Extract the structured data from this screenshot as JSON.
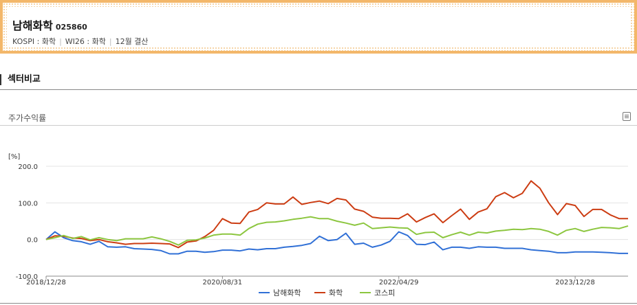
{
  "header": {
    "company": "남해화학",
    "code": "025860",
    "market": "KOSPI : 화학",
    "index": "WI26 : 화학",
    "fiscal": "12월 결산"
  },
  "section": {
    "title": "섹터비교"
  },
  "chart_title": "주가수익률",
  "colors": {
    "남해화학": "#2f6fd6",
    "화학": "#cc3c12",
    "코스피": "#8cc63f",
    "accent_border": "#f3b76a"
  },
  "chart_data": {
    "type": "line",
    "unit_label": "[%]",
    "ylim": [
      -100,
      200
    ],
    "y_ticks": [
      "200.0",
      "100.0",
      "0.0",
      "-100.0"
    ],
    "y_tick_values": [
      200,
      100,
      0,
      -100
    ],
    "x_tick_labels": [
      "2018/12/28",
      "2020/08/31",
      "2022/04/29",
      "2023/12/28"
    ],
    "x_tick_index": [
      0,
      20,
      40,
      60
    ],
    "grid": true,
    "legend_position": "bottom",
    "series": [
      {
        "name": "남해화학",
        "values": [
          0,
          21,
          5,
          -3,
          -6,
          -13,
          -5,
          -20,
          -21,
          -20,
          -25,
          -26,
          -27,
          -30,
          -39,
          -39,
          -32,
          -32,
          -35,
          -33,
          -29,
          -29,
          -31,
          -26,
          -28,
          -25,
          -25,
          -21,
          -19,
          -16,
          -11,
          9,
          -3,
          0,
          17,
          -13,
          -10,
          -21,
          -15,
          -5,
          21,
          11,
          -13,
          -14,
          -7,
          -28,
          -21,
          -21,
          -24,
          -20,
          -21,
          -21,
          -24,
          -24,
          -24,
          -28,
          -30,
          -32,
          -36,
          -36,
          -34,
          -34,
          -34,
          -35,
          -36,
          -38,
          -38
        ]
      },
      {
        "name": "화학",
        "values": [
          0,
          10,
          9,
          4,
          3,
          -3,
          0,
          -6,
          -9,
          -13,
          -11,
          -11,
          -10,
          -11,
          -12,
          -22,
          -7,
          -4,
          8,
          25,
          57,
          45,
          44,
          75,
          82,
          100,
          97,
          97,
          116,
          96,
          101,
          105,
          98,
          112,
          108,
          83,
          77,
          61,
          58,
          58,
          57,
          70,
          48,
          60,
          70,
          46,
          65,
          83,
          55,
          75,
          84,
          117,
          128,
          114,
          126,
          160,
          140,
          100,
          68,
          98,
          93,
          63,
          82,
          82,
          67,
          57,
          57
        ]
      },
      {
        "name": "코스피",
        "values": [
          0,
          5,
          11,
          3,
          8,
          -1,
          5,
          0,
          -3,
          2,
          2,
          2,
          7,
          2,
          -5,
          -15,
          -2,
          -1,
          4,
          12,
          15,
          15,
          12,
          30,
          42,
          47,
          48,
          51,
          55,
          58,
          62,
          57,
          57,
          50,
          45,
          39,
          45,
          30,
          32,
          34,
          32,
          31,
          14,
          19,
          20,
          5,
          13,
          20,
          12,
          20,
          18,
          23,
          25,
          28,
          27,
          30,
          28,
          22,
          12,
          25,
          30,
          22,
          28,
          33,
          32,
          30,
          37
        ]
      }
    ]
  }
}
